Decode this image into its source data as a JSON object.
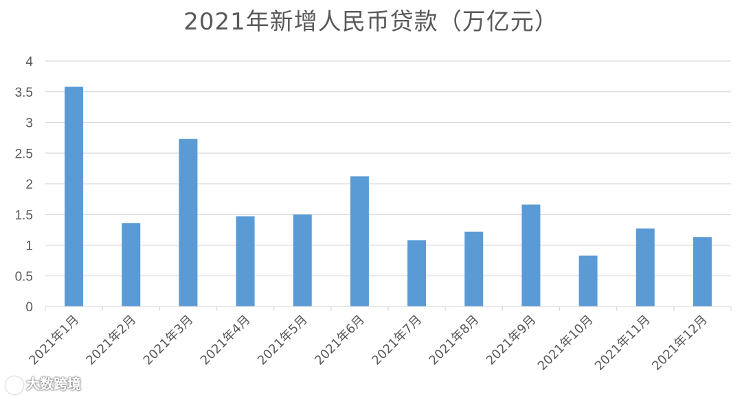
{
  "chart_data": {
    "type": "bar",
    "title": "2021年新增人民币贷款（万亿元）",
    "xlabel": "",
    "ylabel": "",
    "categories": [
      "2021年1月",
      "2021年2月",
      "2021年3月",
      "2021年4月",
      "2021年5月",
      "2021年6月",
      "2021年7月",
      "2021年8月",
      "2021年9月",
      "2021年10月",
      "2021年11月",
      "2021年12月"
    ],
    "values": [
      3.58,
      1.36,
      2.73,
      1.47,
      1.5,
      2.12,
      1.08,
      1.22,
      1.66,
      0.83,
      1.27,
      1.13
    ],
    "ylim": [
      0,
      4
    ],
    "yticks": [
      "0",
      "0.5",
      "1",
      "1.5",
      "2",
      "2.5",
      "3",
      "3.5",
      "4"
    ],
    "grid": true,
    "bar_color": "#5B9BD5",
    "legend": "none"
  },
  "watermark": {
    "text": "大数跨境",
    "icon": "logo-icon"
  }
}
